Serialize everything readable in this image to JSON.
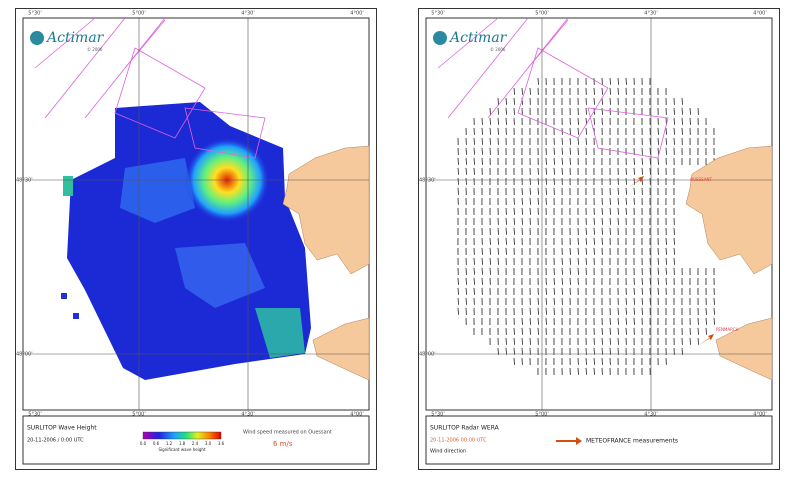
{
  "frame_labels": {
    "lon": [
      "5°30'",
      "5°00'",
      "4°30'",
      "4°00'"
    ],
    "lat": [
      "48°30'",
      "48°00'"
    ]
  },
  "panels": [
    {
      "logo": "Actimar",
      "logo_year": "© 2006",
      "title": "SURLITOP Wave Height",
      "date": "20-11-2006 / 0:00 UTC",
      "colorbar": {
        "ticks": [
          "0.0",
          "0.6",
          "1.2",
          "1.8",
          "2.4",
          "3.0",
          "3.6"
        ],
        "label": "Significant wave height"
      },
      "note": "Wind speed measured on Ouessant",
      "note_value": "6 m/s"
    },
    {
      "logo": "Actimar",
      "logo_year": "© 2006",
      "title": "SURLITOP Radar WERA",
      "date": "20-11-2006 00:00 UTC",
      "subtitle": "Wind direction",
      "legend": "METEOFRANCE measurements",
      "stations": [
        "OUESSANT",
        "PENMARCH"
      ]
    }
  ]
}
